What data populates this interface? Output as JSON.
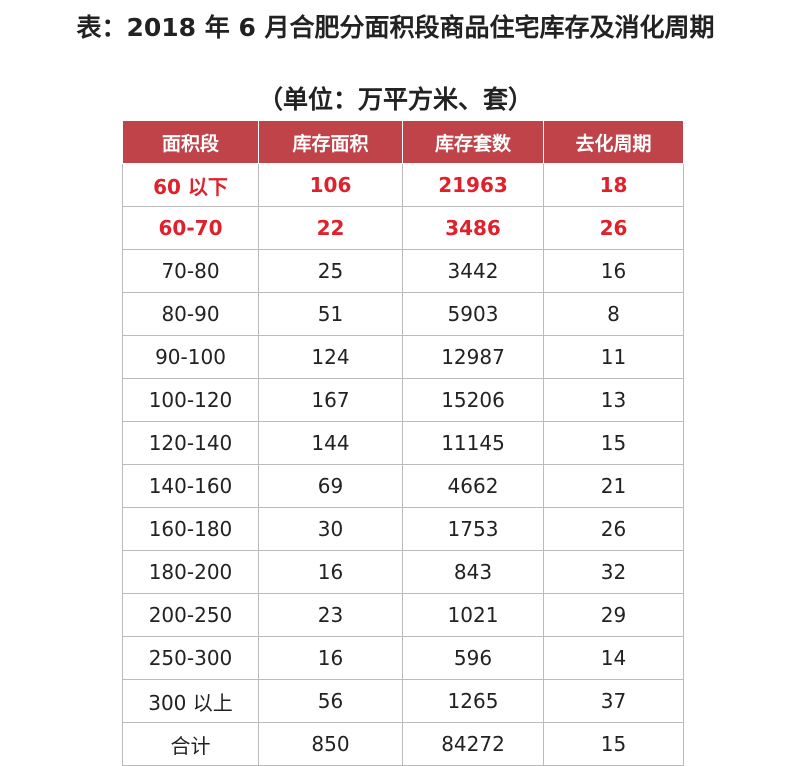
{
  "header": {
    "title": "表：2018 年 6 月合肥分面积段商品住宅库存及消化周期",
    "subtitle": "（单位：万平方米、套）"
  },
  "table": {
    "columns": [
      "面积段",
      "库存面积",
      "库存套数",
      "去化周期"
    ],
    "rows": [
      [
        "60 以下",
        "106",
        "21963",
        "18"
      ],
      [
        "60-70",
        "22",
        "3486",
        "26"
      ],
      [
        "70-80",
        "25",
        "3442",
        "16"
      ],
      [
        "80-90",
        "51",
        "5903",
        "8"
      ],
      [
        "90-100",
        "124",
        "12987",
        "11"
      ],
      [
        "100-120",
        "167",
        "15206",
        "13"
      ],
      [
        "120-140",
        "144",
        "11145",
        "15"
      ],
      [
        "140-160",
        "69",
        "4662",
        "21"
      ],
      [
        "160-180",
        "30",
        "1753",
        "26"
      ],
      [
        "180-200",
        "16",
        "843",
        "32"
      ],
      [
        "200-250",
        "23",
        "1021",
        "29"
      ],
      [
        "250-300",
        "16",
        "596",
        "14"
      ],
      [
        "300 以上",
        "56",
        "1265",
        "37"
      ],
      [
        "合计",
        "850",
        "84272",
        "15"
      ]
    ]
  }
}
